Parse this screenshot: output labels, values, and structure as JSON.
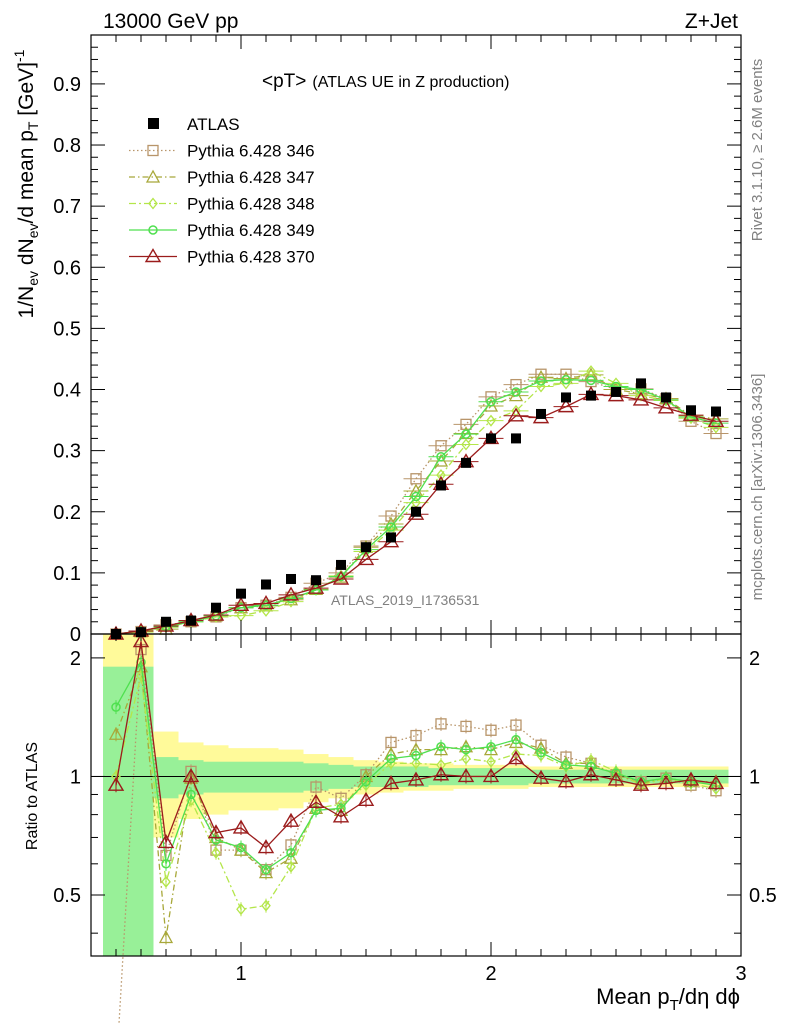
{
  "header": {
    "energy_label": "13000 GeV pp",
    "process_label": "Z+Jet"
  },
  "side_labels": {
    "rivet": "Rivet 3.1.10, ≥ 2.6M events",
    "mcplots": "mcplots.cern.ch [arXiv:1306.3436]"
  },
  "chart_data": {
    "type": "scatter",
    "title_main": "<pT>",
    "title_sub": "(ATLAS UE in Z production)",
    "watermark": "ATLAS_2019_I1736531",
    "ylabel": "1/N",
    "ylabel_sub_ev": "ev",
    "ylabel_mid": " dN",
    "ylabel_mid2": "/d mean p",
    "ylabel_sub_t": "T",
    "ylabel_unit": " [GeV]",
    "ylabel_exp": "-1",
    "xlabel": "Mean p",
    "xlabel_sub": "T",
    "xlabel_tail": "/dη dϕ",
    "ratio_ylabel": "Ratio to ATLAS",
    "xlim": [
      0.4,
      3.0
    ],
    "ylim_main": [
      0,
      0.98
    ],
    "ylim_ratio": [
      0.35,
      2.3
    ],
    "xticks_major": [
      "1",
      "2",
      "3"
    ],
    "yticks_main": [
      "0",
      "0.1",
      "0.2",
      "0.3",
      "0.4",
      "0.5",
      "0.6",
      "0.7",
      "0.8",
      "0.9"
    ],
    "yticks_ratio": [
      "0.5",
      "1",
      "2"
    ],
    "x": [
      0.5,
      0.6,
      0.7,
      0.8,
      0.9,
      1.0,
      1.1,
      1.2,
      1.3,
      1.4,
      1.5,
      1.6,
      1.7,
      1.8,
      1.9,
      2.0,
      2.1,
      2.2,
      2.3,
      2.4,
      2.5,
      2.6,
      2.7,
      2.8,
      2.9
    ],
    "data": {
      "name": "ATLAS",
      "values": [
        0.0,
        0.003,
        0.02,
        0.022,
        0.043,
        0.066,
        0.081,
        0.09,
        0.088,
        0.113,
        0.142,
        0.158,
        0.2,
        0.243,
        0.28,
        0.32,
        0.32,
        0.36,
        0.387,
        0.39,
        0.396,
        0.41,
        0.387,
        0.366,
        0.364
      ],
      "band_inner": [
        0.12,
        0.12,
        0.12,
        0.1,
        0.09,
        0.09,
        0.09,
        0.09,
        0.08,
        0.07,
        0.06,
        0.06,
        0.06,
        0.05,
        0.05,
        0.05,
        0.05,
        0.04,
        0.04,
        0.04,
        0.04,
        0.04,
        0.04,
        0.04,
        0.04
      ],
      "band_outer": [
        0.3,
        0.3,
        0.3,
        0.22,
        0.2,
        0.18,
        0.18,
        0.17,
        0.14,
        0.12,
        0.1,
        0.09,
        0.08,
        0.08,
        0.07,
        0.07,
        0.07,
        0.06,
        0.06,
        0.06,
        0.06,
        0.06,
        0.06,
        0.06,
        0.06
      ]
    },
    "series": [
      {
        "name": "Pythia 6.428 346",
        "color": "#b8956a",
        "marker": "square",
        "dash": "1.5,2.5",
        "values": [
          0.0,
          0.004,
          0.015,
          0.02,
          0.028,
          0.043,
          0.047,
          0.06,
          0.083,
          0.1,
          0.144,
          0.193,
          0.254,
          0.308,
          0.343,
          0.388,
          0.408,
          0.425,
          0.425,
          0.413,
          0.4,
          0.401,
          0.385,
          0.348,
          0.328
        ]
      },
      {
        "name": "Pythia 6.428 347",
        "color": "#a8a83a",
        "marker": "triangle",
        "dash": "6,3,1.5,3",
        "values": [
          0.0,
          0.004,
          0.008,
          0.022,
          0.03,
          0.043,
          0.046,
          0.056,
          0.073,
          0.093,
          0.142,
          0.18,
          0.234,
          0.283,
          0.328,
          0.373,
          0.39,
          0.42,
          0.418,
          0.424,
          0.4,
          0.393,
          0.385,
          0.357,
          0.352
        ]
      },
      {
        "name": "Pythia 6.428 348",
        "color": "#b4e64a",
        "marker": "diamond",
        "dash": "7,3,2,3",
        "values": [
          0.0,
          0.003,
          0.011,
          0.02,
          0.028,
          0.03,
          0.038,
          0.053,
          0.072,
          0.095,
          0.135,
          0.17,
          0.215,
          0.26,
          0.31,
          0.349,
          0.365,
          0.405,
          0.41,
          0.43,
          0.41,
          0.39,
          0.382,
          0.353,
          0.338
        ]
      },
      {
        "name": "Pythia 6.428 349",
        "color": "#4fe04f",
        "marker": "circle",
        "dash": "",
        "values": [
          0.0,
          0.005,
          0.012,
          0.02,
          0.03,
          0.043,
          0.047,
          0.058,
          0.072,
          0.094,
          0.138,
          0.175,
          0.225,
          0.29,
          0.327,
          0.38,
          0.396,
          0.414,
          0.416,
          0.415,
          0.405,
          0.4,
          0.383,
          0.355,
          0.345
        ]
      },
      {
        "name": "Pythia 6.428 370",
        "color": "#9b1c1c",
        "marker": "triangle-open",
        "dash": "",
        "values": [
          0.0,
          0.005,
          0.013,
          0.022,
          0.031,
          0.047,
          0.05,
          0.064,
          0.075,
          0.09,
          0.122,
          0.151,
          0.196,
          0.245,
          0.282,
          0.32,
          0.357,
          0.354,
          0.372,
          0.392,
          0.39,
          0.383,
          0.37,
          0.358,
          0.348
        ]
      }
    ],
    "ratios": [
      [
        0.06,
        2.1,
        0.63,
        1.03,
        0.65,
        0.65,
        0.58,
        0.67,
        0.94,
        0.88,
        1.01,
        1.22,
        1.27,
        1.36,
        1.34,
        1.31,
        1.35,
        1.2,
        1.12,
        1.08,
        1.01,
        0.97,
        0.99,
        0.95,
        0.92
      ],
      [
        1.28,
        1.9,
        0.39,
        0.99,
        0.7,
        0.65,
        0.57,
        0.62,
        0.83,
        0.82,
        1.0,
        1.14,
        1.17,
        1.17,
        1.19,
        1.17,
        1.22,
        1.18,
        1.08,
        1.08,
        1.01,
        0.96,
        0.99,
        0.97,
        0.97
      ],
      [
        1.0,
        1.8,
        0.54,
        0.87,
        0.64,
        0.46,
        0.47,
        0.59,
        0.83,
        0.85,
        0.95,
        1.08,
        1.08,
        1.07,
        1.11,
        1.09,
        1.14,
        1.13,
        1.06,
        1.1,
        1.03,
        0.95,
        0.99,
        0.96,
        0.93
      ],
      [
        1.5,
        1.95,
        0.6,
        0.9,
        0.69,
        0.66,
        0.58,
        0.64,
        0.82,
        0.83,
        0.97,
        1.11,
        1.13,
        1.19,
        1.17,
        1.19,
        1.24,
        1.15,
        1.07,
        1.06,
        1.02,
        0.97,
        0.99,
        0.97,
        0.95
      ],
      [
        0.95,
        2.2,
        0.68,
        1.0,
        0.72,
        0.74,
        0.66,
        0.77,
        0.86,
        0.79,
        0.87,
        0.96,
        0.98,
        1.01,
        1.0,
        1.0,
        1.11,
        0.99,
        0.97,
        1.01,
        0.98,
        0.95,
        0.96,
        0.98,
        0.96
      ]
    ]
  }
}
